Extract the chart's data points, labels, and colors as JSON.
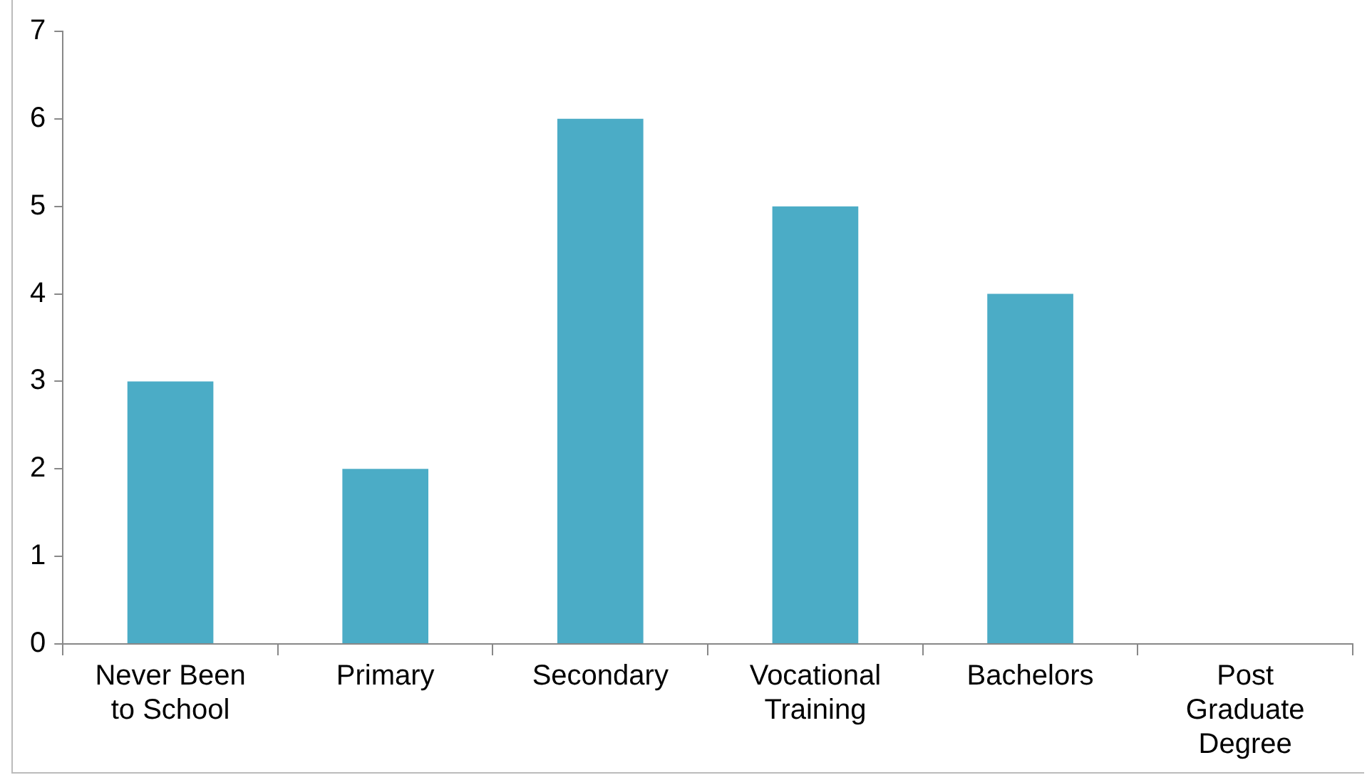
{
  "chart_data": {
    "type": "bar",
    "categories": [
      "Never Been to School",
      "Primary",
      "Secondary",
      "Vocational Training",
      "Bachelors",
      "Post Graduate Degree"
    ],
    "values": [
      3,
      2,
      6,
      5,
      4,
      0
    ],
    "color": "#4bacc6",
    "ylim": [
      0,
      7
    ],
    "yticks": [
      0,
      1,
      2,
      3,
      4,
      5,
      6,
      7
    ],
    "grid": false,
    "legend": false
  }
}
